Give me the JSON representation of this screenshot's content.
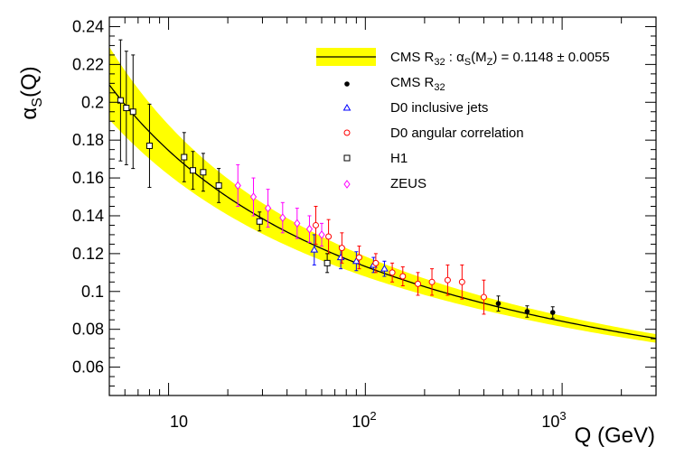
{
  "chart_data": {
    "type": "scatter",
    "x_scale": "log",
    "xlim": [
      5,
      3000
    ],
    "ylim": [
      0.045,
      0.245
    ],
    "xlabel": "Q (GeV)",
    "ylabel_main": "α",
    "ylabel_sub": "S",
    "ylabel_tail": "(Q)",
    "y_ticks": [
      "0.06",
      "0.08",
      "0.1",
      "0.12",
      "0.14",
      "0.16",
      "0.18",
      "0.2",
      "0.22",
      "0.24"
    ],
    "x_tick_10": "10",
    "x_tick_100_base": "10",
    "x_tick_100_exp": "2",
    "x_tick_1000_base": "10",
    "x_tick_1000_exp": "3",
    "fit": {
      "alpha_mz": 0.1148,
      "uncertainty": 0.0055,
      "band_color": "#ffff00",
      "line_color": "#000000",
      "legend_prefix": "CMS R",
      "legend_sub": "32",
      "legend_mid": " :  α",
      "legend_mid_sub": "S",
      "legend_paren_open": "(M",
      "legend_paren_sub": "Z",
      "legend_tail": ") = 0.1148 ± 0.0055"
    },
    "series": [
      {
        "name": "CMS R",
        "name_sub": "32",
        "marker": "filled-circle",
        "color": "#000000",
        "points": [
          {
            "x": 474,
            "y": 0.0936,
            "err": 0.004
          },
          {
            "x": 664,
            "y": 0.0894,
            "err": 0.003
          },
          {
            "x": 896,
            "y": 0.0889,
            "err": 0.003
          }
        ]
      },
      {
        "name": "D0 inclusive jets",
        "marker": "open-triangle",
        "color": "#0000ff",
        "points": [
          {
            "x": 55,
            "y": 0.122,
            "err": 0.008
          },
          {
            "x": 75,
            "y": 0.118,
            "err": 0.006
          },
          {
            "x": 90,
            "y": 0.116,
            "err": 0.005
          },
          {
            "x": 110,
            "y": 0.114,
            "err": 0.004
          },
          {
            "x": 125,
            "y": 0.112,
            "err": 0.004
          }
        ]
      },
      {
        "name": "D0 angular correlation",
        "marker": "open-circle",
        "color": "#ff0000",
        "points": [
          {
            "x": 56,
            "y": 0.135,
            "err": 0.01
          },
          {
            "x": 65,
            "y": 0.129,
            "err": 0.009
          },
          {
            "x": 76,
            "y": 0.123,
            "err": 0.008
          },
          {
            "x": 93,
            "y": 0.118,
            "err": 0.006
          },
          {
            "x": 113,
            "y": 0.115,
            "err": 0.005
          },
          {
            "x": 137,
            "y": 0.11,
            "err": 0.005
          },
          {
            "x": 155,
            "y": 0.108,
            "err": 0.005
          },
          {
            "x": 185,
            "y": 0.104,
            "err": 0.006
          },
          {
            "x": 218,
            "y": 0.105,
            "err": 0.007
          },
          {
            "x": 262,
            "y": 0.106,
            "err": 0.008
          },
          {
            "x": 310,
            "y": 0.105,
            "err": 0.009
          },
          {
            "x": 400,
            "y": 0.097,
            "err": 0.009
          }
        ]
      },
      {
        "name": "H1",
        "marker": "open-square",
        "color": "#000000",
        "points": [
          {
            "x": 5.7,
            "y": 0.201,
            "err": 0.032
          },
          {
            "x": 6.1,
            "y": 0.197,
            "err": 0.03
          },
          {
            "x": 6.6,
            "y": 0.195,
            "err": 0.03
          },
          {
            "x": 8.0,
            "y": 0.177,
            "err": 0.022
          },
          {
            "x": 12.0,
            "y": 0.171,
            "err": 0.013
          },
          {
            "x": 13.3,
            "y": 0.164,
            "err": 0.01
          },
          {
            "x": 15.0,
            "y": 0.163,
            "err": 0.01
          },
          {
            "x": 18.0,
            "y": 0.156,
            "err": 0.009
          },
          {
            "x": 29.0,
            "y": 0.137,
            "err": 0.005
          },
          {
            "x": 64.0,
            "y": 0.115,
            "err": 0.005
          }
        ]
      },
      {
        "name": "ZEUS",
        "marker": "open-diamond",
        "color": "#ff00ff",
        "points": [
          {
            "x": 22.5,
            "y": 0.156,
            "err": 0.011
          },
          {
            "x": 27.0,
            "y": 0.15,
            "err": 0.01
          },
          {
            "x": 32.0,
            "y": 0.144,
            "err": 0.01
          },
          {
            "x": 38.0,
            "y": 0.139,
            "err": 0.008
          },
          {
            "x": 45.0,
            "y": 0.136,
            "err": 0.008
          },
          {
            "x": 52.0,
            "y": 0.133,
            "err": 0.007
          },
          {
            "x": 60.0,
            "y": 0.13,
            "err": 0.006
          }
        ]
      }
    ],
    "legend_position": "top-right",
    "grid": false
  }
}
